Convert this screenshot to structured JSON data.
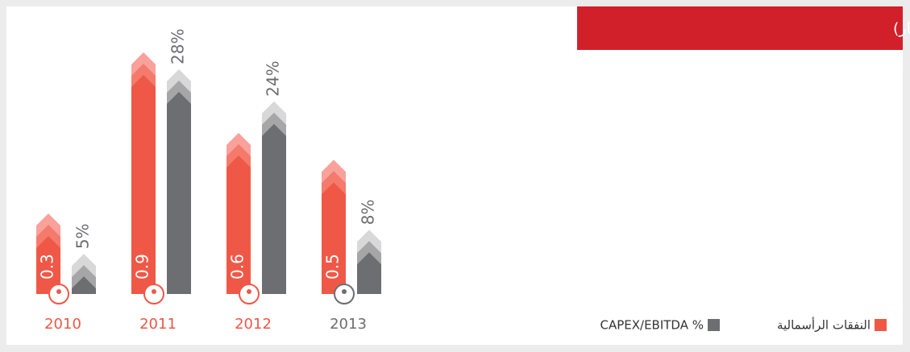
{
  "chart_data": {
    "type": "bar",
    "title": "النفقات الرأسمالية (مليون دينار)",
    "categories": [
      "2010",
      "2011",
      "2012",
      "2013"
    ],
    "series": [
      {
        "name": "النفقات الرأسمالية",
        "color": "#ef5847",
        "values": [
          0.3,
          0.9,
          0.6,
          0.5
        ]
      },
      {
        "name": "CAPEX/EBITDA %",
        "color": "#6d6e71",
        "values": [
          5,
          28,
          24,
          8
        ],
        "value_labels": [
          "5%",
          "28%",
          "24%",
          "8%"
        ]
      }
    ]
  }
}
